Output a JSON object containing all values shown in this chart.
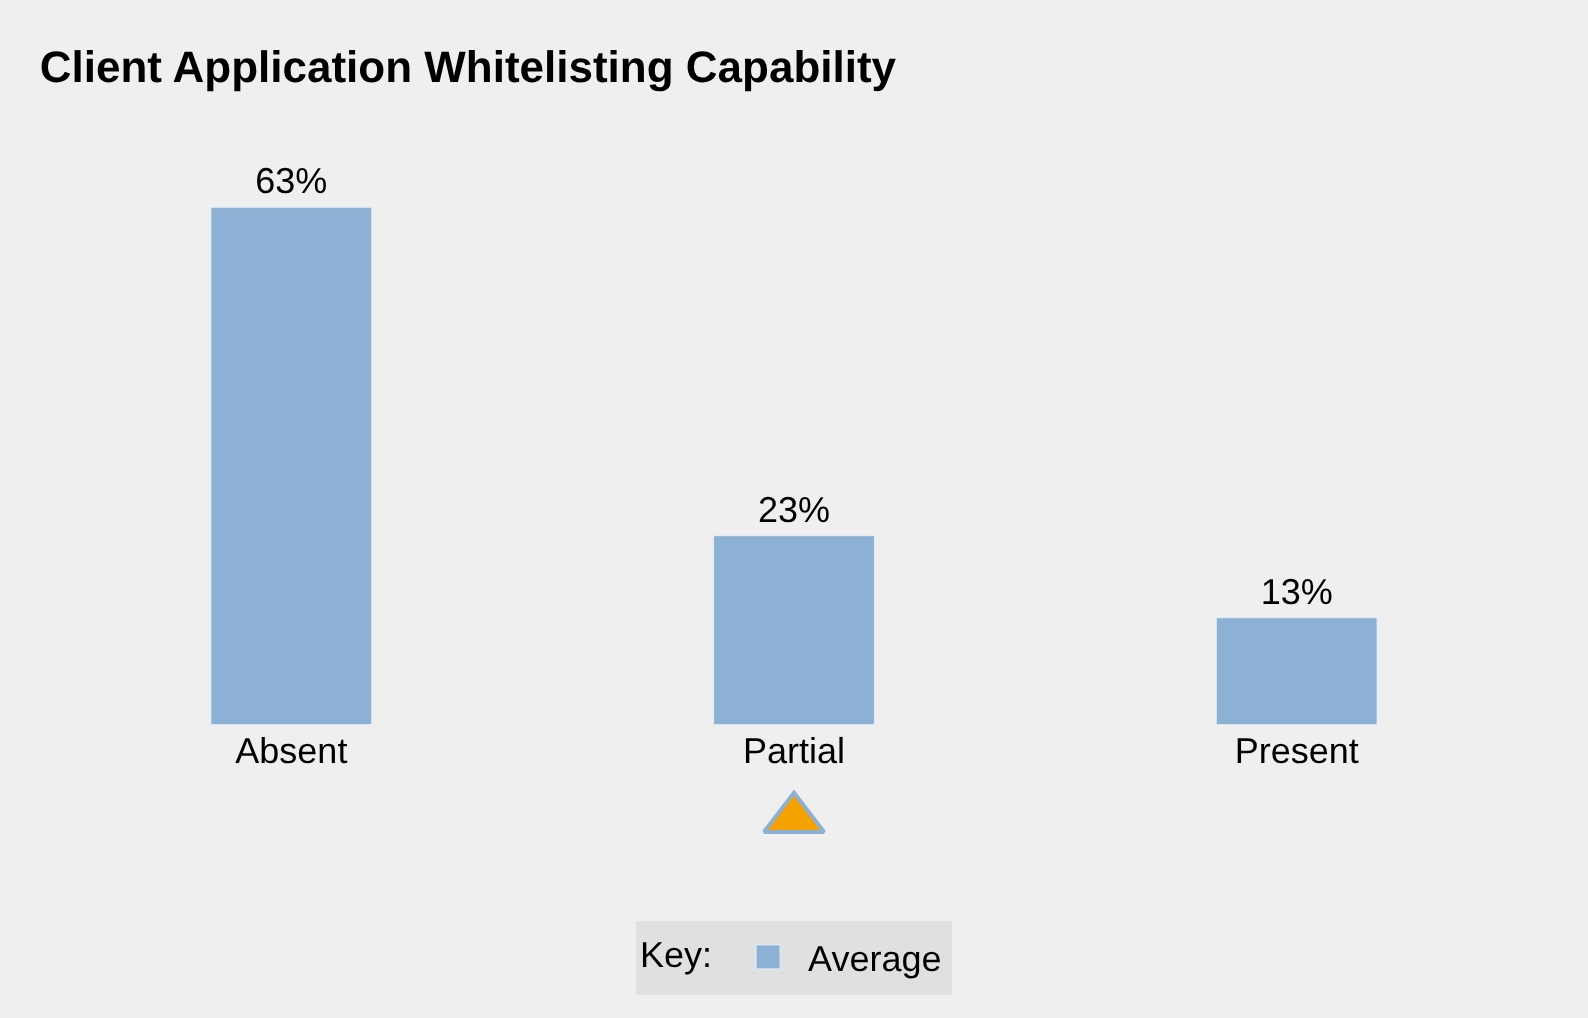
{
  "chart_data": {
    "type": "bar",
    "title": "Client Application Whitelisting Capability",
    "categories": [
      "Absent",
      "Partial",
      "Present"
    ],
    "series": [
      {
        "name": "Average",
        "color": "#8db1d4",
        "values": [
          63,
          23,
          13
        ],
        "value_labels": [
          "63%",
          "23%",
          "13%"
        ]
      },
      {
        "type": "scatter",
        "color": "#f5a200",
        "x": [
          "Partial"
        ],
        "values": [
          null
        ],
        "axis": "y2"
      }
    ],
    "tick_labels": "x",
    "grid": false,
    "legend": "bottom",
    "legend_title": "Key:",
    "marker": "triangle"
  }
}
